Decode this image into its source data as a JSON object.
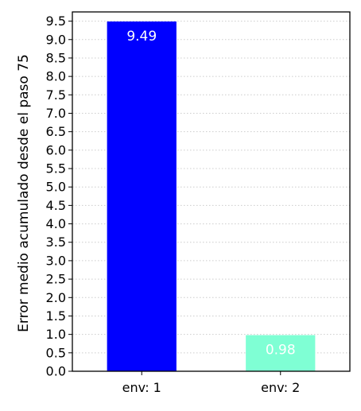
{
  "chart_data": {
    "type": "bar",
    "ylabel": "Error medio acumulado desde el paso 75",
    "categories": [
      "env: 1",
      "env: 2"
    ],
    "values": [
      9.49,
      0.98
    ],
    "value_labels": [
      "9.49",
      "0.98"
    ],
    "bar_colors": [
      "#0000ff",
      "#7fffd4"
    ],
    "ylim": [
      0,
      9.75
    ],
    "yticks": [
      0.0,
      0.5,
      1.0,
      1.5,
      2.0,
      2.5,
      3.0,
      3.5,
      4.0,
      4.5,
      5.0,
      5.5,
      6.0,
      6.5,
      7.0,
      7.5,
      8.0,
      8.5,
      9.0,
      9.5
    ],
    "ytick_labels": [
      "0.0",
      "0.5",
      "1.0",
      "1.5",
      "2.0",
      "2.5",
      "3.0",
      "3.5",
      "4.0",
      "4.5",
      "5.0",
      "5.5",
      "6.0",
      "6.5",
      "7.0",
      "7.5",
      "8.0",
      "8.5",
      "9.0",
      "9.5"
    ],
    "grid": "horizontal-dotted",
    "legend": "none"
  }
}
